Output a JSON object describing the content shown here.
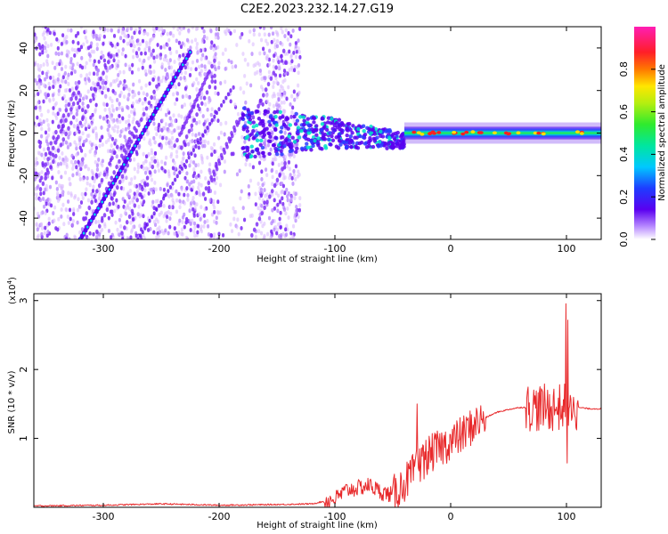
{
  "title": "C2E2.2023.232.14.27.G19",
  "colors": {
    "snr_line": "#e8292b",
    "track": "#5a00f0",
    "scatter_light": "#d9b8ff",
    "scatter_mid": "#b07cff",
    "scatter_dark": "#7a28f5"
  },
  "chart_data": [
    {
      "type": "heatmap",
      "xlabel": "Height of straight line (km)",
      "ylabel": "Frequency (Hz)",
      "xlim": [
        -360,
        130
      ],
      "ylim": [
        -50,
        50
      ],
      "xticks": [
        -300,
        -200,
        -100,
        0,
        100
      ],
      "yticks": [
        -40,
        -20,
        0,
        20,
        40
      ],
      "colorbar": {
        "label": "Normalized spectral amplitude",
        "range": [
          0,
          1
        ],
        "ticks": [
          "0.0",
          "0.2",
          "0.4",
          "0.6",
          "0.8"
        ]
      },
      "features": {
        "rising_track": {
          "x": [
            -320,
            -225
          ],
          "y": [
            -50,
            38
          ]
        },
        "faint_track": {
          "x": [
            -270,
            -190
          ],
          "y": [
            -50,
            20
          ]
        },
        "central_band": {
          "x": [
            -40,
            130
          ],
          "y": 0
        },
        "noisy_region": {
          "x": [
            -360,
            -130
          ]
        },
        "transition_region": {
          "x": [
            -180,
            -40
          ]
        }
      }
    },
    {
      "type": "line",
      "xlabel": "Height of straight line (km)",
      "ylabel": "SNR (10 * v/v)",
      "yscale_label": "(x10",
      "yscale_exp": "4",
      "yscale_close": ")",
      "xlim": [
        -360,
        130
      ],
      "ylim": [
        0,
        3.1
      ],
      "xticks": [
        -300,
        -200,
        -100,
        0,
        100
      ],
      "yticks": [
        1,
        2,
        3
      ],
      "series": [
        {
          "x": [
            -360,
            -300,
            -250,
            -200,
            -150,
            -120,
            -100,
            -90,
            -80,
            -70,
            -60,
            -50,
            -40,
            -30,
            -20,
            -10,
            0,
            10,
            20,
            30,
            40,
            50,
            60,
            70,
            80,
            90,
            100,
            105,
            110,
            120,
            130
          ],
          "y": [
            0.02,
            0.03,
            0.05,
            0.03,
            0.04,
            0.05,
            0.12,
            0.25,
            0.28,
            0.32,
            0.22,
            0.18,
            0.35,
            0.55,
            0.75,
            0.85,
            0.95,
            1.05,
            1.2,
            1.3,
            1.38,
            1.42,
            1.45,
            1.45,
            1.44,
            1.45,
            1.45,
            1.5,
            1.45,
            1.43,
            1.43
          ]
        }
      ]
    }
  ]
}
